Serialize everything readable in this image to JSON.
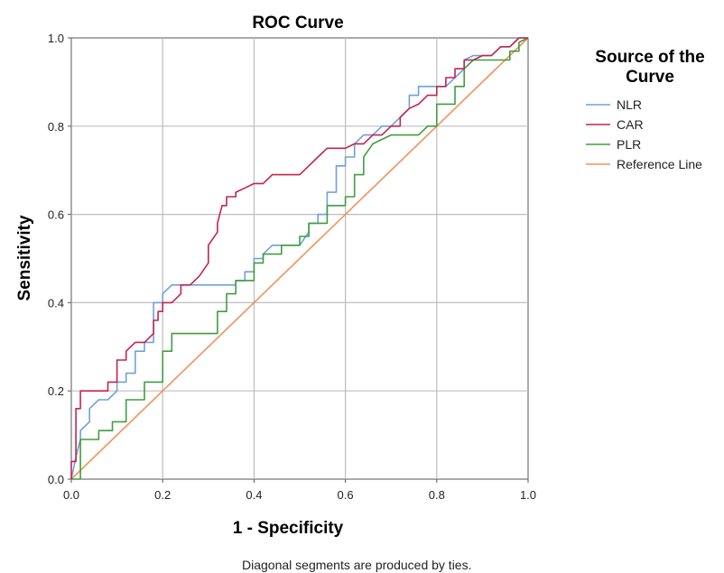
{
  "chart_data": {
    "type": "line",
    "title": "ROC Curve",
    "xlabel": "1 - Specificity",
    "ylabel": "Sensitivity",
    "xlim": [
      0,
      1
    ],
    "ylim": [
      0,
      1
    ],
    "xticks": [
      "0.0",
      "0.2",
      "0.4",
      "0.6",
      "0.8",
      "1.0"
    ],
    "yticks": [
      "0.0",
      "0.2",
      "0.4",
      "0.6",
      "0.8",
      "1.0"
    ],
    "grid": true,
    "legend": {
      "title_line1": "Source of the",
      "title_line2": "Curve",
      "placement": "right"
    },
    "footnote": "Diagonal segments are produced by ties.",
    "series": [
      {
        "name": "NLR",
        "color": "#6fa0d8",
        "x": [
          0,
          0.01,
          0.02,
          0.02,
          0.04,
          0.04,
          0.06,
          0.06,
          0.08,
          0.1,
          0.1,
          0.12,
          0.12,
          0.14,
          0.14,
          0.16,
          0.16,
          0.18,
          0.18,
          0.2,
          0.2,
          0.22,
          0.24,
          0.28,
          0.32,
          0.36,
          0.36,
          0.38,
          0.38,
          0.4,
          0.4,
          0.42,
          0.42,
          0.44,
          0.48,
          0.5,
          0.52,
          0.52,
          0.54,
          0.54,
          0.56,
          0.56,
          0.58,
          0.58,
          0.6,
          0.6,
          0.62,
          0.62,
          0.64,
          0.66,
          0.68,
          0.7,
          0.72,
          0.74,
          0.74,
          0.76,
          0.76,
          0.78,
          0.82,
          0.84,
          0.86,
          0.86,
          0.88,
          0.92,
          0.94,
          0.96,
          0.98,
          1.0
        ],
        "y": [
          0,
          0.05,
          0.09,
          0.11,
          0.13,
          0.16,
          0.18,
          0.18,
          0.18,
          0.2,
          0.22,
          0.22,
          0.24,
          0.24,
          0.29,
          0.29,
          0.31,
          0.31,
          0.4,
          0.4,
          0.42,
          0.44,
          0.44,
          0.44,
          0.44,
          0.44,
          0.45,
          0.45,
          0.47,
          0.47,
          0.5,
          0.5,
          0.51,
          0.53,
          0.53,
          0.53,
          0.56,
          0.58,
          0.58,
          0.6,
          0.6,
          0.65,
          0.65,
          0.71,
          0.71,
          0.73,
          0.73,
          0.76,
          0.78,
          0.78,
          0.8,
          0.8,
          0.82,
          0.84,
          0.87,
          0.87,
          0.89,
          0.89,
          0.89,
          0.91,
          0.93,
          0.95,
          0.96,
          0.96,
          0.98,
          0.98,
          1.0,
          1.0
        ]
      },
      {
        "name": "CAR",
        "color": "#c42350",
        "x": [
          0,
          0,
          0.01,
          0.01,
          0.02,
          0.02,
          0.04,
          0.06,
          0.08,
          0.08,
          0.1,
          0.1,
          0.12,
          0.12,
          0.14,
          0.16,
          0.18,
          0.18,
          0.19,
          0.19,
          0.2,
          0.2,
          0.22,
          0.24,
          0.24,
          0.26,
          0.28,
          0.3,
          0.3,
          0.32,
          0.32,
          0.33,
          0.34,
          0.34,
          0.36,
          0.36,
          0.38,
          0.4,
          0.4,
          0.42,
          0.44,
          0.5,
          0.52,
          0.54,
          0.56,
          0.58,
          0.58,
          0.6,
          0.62,
          0.64,
          0.64,
          0.66,
          0.68,
          0.7,
          0.72,
          0.72,
          0.74,
          0.76,
          0.78,
          0.8,
          0.8,
          0.82,
          0.82,
          0.84,
          0.84,
          0.86,
          0.86,
          0.88,
          0.9,
          0.92,
          0.94,
          0.96,
          0.98,
          1.0
        ],
        "y": [
          0,
          0.04,
          0.04,
          0.16,
          0.16,
          0.2,
          0.2,
          0.2,
          0.2,
          0.22,
          0.22,
          0.27,
          0.27,
          0.29,
          0.31,
          0.31,
          0.33,
          0.36,
          0.36,
          0.38,
          0.38,
          0.4,
          0.4,
          0.42,
          0.44,
          0.44,
          0.46,
          0.49,
          0.53,
          0.56,
          0.58,
          0.62,
          0.62,
          0.64,
          0.64,
          0.65,
          0.66,
          0.67,
          0.67,
          0.67,
          0.69,
          0.69,
          0.71,
          0.73,
          0.75,
          0.75,
          0.75,
          0.75,
          0.76,
          0.76,
          0.76,
          0.78,
          0.78,
          0.8,
          0.8,
          0.82,
          0.84,
          0.85,
          0.87,
          0.87,
          0.89,
          0.89,
          0.91,
          0.91,
          0.93,
          0.93,
          0.95,
          0.95,
          0.96,
          0.96,
          0.98,
          0.98,
          1.0,
          1.0
        ]
      },
      {
        "name": "PLR",
        "color": "#3f9e3f",
        "x": [
          0,
          0.02,
          0.02,
          0.06,
          0.06,
          0.09,
          0.09,
          0.12,
          0.12,
          0.16,
          0.16,
          0.2,
          0.2,
          0.22,
          0.22,
          0.32,
          0.32,
          0.34,
          0.34,
          0.36,
          0.36,
          0.4,
          0.4,
          0.42,
          0.42,
          0.46,
          0.46,
          0.5,
          0.5,
          0.52,
          0.52,
          0.56,
          0.56,
          0.6,
          0.6,
          0.62,
          0.62,
          0.64,
          0.64,
          0.66,
          0.7,
          0.76,
          0.78,
          0.8,
          0.8,
          0.84,
          0.84,
          0.86,
          0.86,
          0.88,
          0.96,
          0.96,
          0.98,
          0.98,
          1.0
        ],
        "y": [
          0,
          0,
          0.09,
          0.09,
          0.11,
          0.11,
          0.13,
          0.13,
          0.18,
          0.18,
          0.22,
          0.22,
          0.29,
          0.29,
          0.33,
          0.33,
          0.38,
          0.38,
          0.42,
          0.42,
          0.45,
          0.45,
          0.49,
          0.49,
          0.51,
          0.51,
          0.53,
          0.53,
          0.55,
          0.55,
          0.58,
          0.58,
          0.62,
          0.62,
          0.64,
          0.64,
          0.69,
          0.69,
          0.73,
          0.76,
          0.78,
          0.78,
          0.8,
          0.8,
          0.85,
          0.85,
          0.89,
          0.89,
          0.93,
          0.95,
          0.95,
          0.97,
          0.97,
          0.99,
          1.0
        ]
      },
      {
        "name": "Reference Line",
        "color": "#f0935a",
        "x": [
          0,
          1
        ],
        "y": [
          0,
          1
        ]
      }
    ]
  }
}
